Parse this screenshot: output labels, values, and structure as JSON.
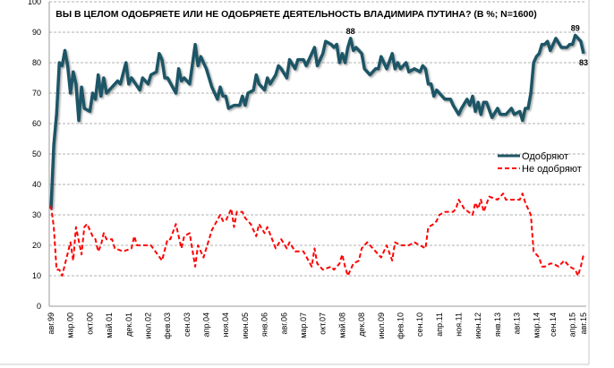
{
  "chart_data": {
    "type": "line",
    "title": "ВЫ В ЦЕЛОМ ОДОБРЯЕТЕ ИЛИ НЕ ОДОБРЯЕТЕ ДЕЯТЕЛЬНОСТЬ ВЛАДИМИРА ПУТИНА? (В %; N=1600)",
    "xlabel": "",
    "ylabel": "",
    "ylim": [
      0,
      100
    ],
    "yticks": [
      0,
      10,
      20,
      30,
      40,
      50,
      60,
      70,
      80,
      90,
      100
    ],
    "xlim": [
      "1999-08",
      "2015-08"
    ],
    "xtick_labels": [
      "авг.99",
      "мар.00",
      "окт.00",
      "май.01",
      "дек.01",
      "июл.02",
      "фев.03",
      "сен.03",
      "апр.04",
      "ноя.04",
      "июн.05",
      "янв.06",
      "авг.06",
      "мар.07",
      "окт.07",
      "май.08",
      "дек.08",
      "июл.09",
      "фев.10",
      "сен.10",
      "апр.11",
      "ноя.11",
      "июн.12",
      "янв.13",
      "авг.13",
      "мар.14",
      "сен.14",
      "апр.15",
      "авг.15"
    ],
    "grid": "horizontal dashed",
    "legend_position": "right",
    "series": [
      {
        "name": "Одобряют",
        "color": "#1f5566",
        "style": "solid",
        "points": [
          [
            "1999-08",
            32
          ],
          [
            "1999-09",
            53
          ],
          [
            "1999-10",
            63
          ],
          [
            "1999-11",
            80
          ],
          [
            "1999-12",
            79
          ],
          [
            "2000-01",
            84
          ],
          [
            "2000-02",
            79
          ],
          [
            "2000-03",
            70
          ],
          [
            "2000-04",
            77
          ],
          [
            "2000-05",
            73
          ],
          [
            "2000-06",
            61
          ],
          [
            "2000-07",
            72
          ],
          [
            "2000-08",
            65
          ],
          [
            "2000-10",
            64
          ],
          [
            "2000-11",
            70
          ],
          [
            "2000-12",
            68
          ],
          [
            "2001-01",
            76
          ],
          [
            "2001-02",
            69
          ],
          [
            "2001-03",
            75
          ],
          [
            "2001-04",
            70
          ],
          [
            "2001-06",
            72
          ],
          [
            "2001-08",
            74
          ],
          [
            "2001-09",
            73
          ],
          [
            "2001-11",
            80
          ],
          [
            "2001-12",
            73
          ],
          [
            "2002-01",
            75
          ],
          [
            "2002-04",
            71
          ],
          [
            "2002-05",
            75
          ],
          [
            "2002-07",
            73
          ],
          [
            "2002-08",
            76
          ],
          [
            "2002-10",
            77
          ],
          [
            "2002-11",
            83
          ],
          [
            "2002-12",
            81
          ],
          [
            "2003-01",
            75
          ],
          [
            "2003-02",
            75
          ],
          [
            "2003-05",
            70
          ],
          [
            "2003-06",
            78
          ],
          [
            "2003-07",
            74
          ],
          [
            "2003-08",
            75
          ],
          [
            "2003-10",
            73
          ],
          [
            "2003-12",
            86
          ],
          [
            "2004-01",
            79
          ],
          [
            "2004-02",
            82
          ],
          [
            "2004-04",
            78
          ],
          [
            "2004-06",
            72
          ],
          [
            "2004-08",
            68
          ],
          [
            "2004-09",
            72
          ],
          [
            "2004-10",
            69
          ],
          [
            "2004-11",
            69
          ],
          [
            "2004-12",
            65
          ],
          [
            "2005-02",
            66
          ],
          [
            "2005-04",
            66
          ],
          [
            "2005-05",
            69
          ],
          [
            "2005-06",
            66
          ],
          [
            "2005-07",
            70
          ],
          [
            "2005-09",
            71
          ],
          [
            "2005-10",
            76
          ],
          [
            "2005-11",
            73
          ],
          [
            "2006-01",
            71
          ],
          [
            "2006-02",
            75
          ],
          [
            "2006-03",
            73
          ],
          [
            "2006-05",
            76
          ],
          [
            "2006-06",
            79
          ],
          [
            "2006-07",
            78
          ],
          [
            "2006-09",
            75
          ],
          [
            "2006-10",
            81
          ],
          [
            "2006-12",
            78
          ],
          [
            "2007-01",
            81
          ],
          [
            "2007-03",
            81
          ],
          [
            "2007-04",
            79
          ],
          [
            "2007-05",
            81
          ],
          [
            "2007-07",
            85
          ],
          [
            "2007-08",
            79
          ],
          [
            "2007-10",
            83
          ],
          [
            "2007-11",
            87
          ],
          [
            "2008-01",
            86
          ],
          [
            "2008-02",
            85
          ],
          [
            "2008-03",
            86
          ],
          [
            "2008-04",
            80
          ],
          [
            "2008-05",
            83
          ],
          [
            "2008-06",
            80
          ],
          [
            "2008-07",
            85
          ],
          [
            "2008-08",
            88
          ],
          [
            "2008-09",
            84
          ],
          [
            "2008-10",
            85
          ],
          [
            "2008-12",
            83
          ],
          [
            "2009-01",
            78
          ],
          [
            "2009-03",
            76
          ],
          [
            "2009-05",
            78
          ],
          [
            "2009-06",
            78
          ],
          [
            "2009-07",
            82
          ],
          [
            "2009-08",
            80
          ],
          [
            "2009-09",
            78
          ],
          [
            "2009-11",
            83
          ],
          [
            "2009-12",
            78
          ],
          [
            "2010-01",
            80
          ],
          [
            "2010-02",
            78
          ],
          [
            "2010-04",
            80
          ],
          [
            "2010-05",
            77
          ],
          [
            "2010-07",
            78
          ],
          [
            "2010-09",
            77
          ],
          [
            "2010-10",
            79
          ],
          [
            "2010-11",
            78
          ],
          [
            "2010-12",
            73
          ],
          [
            "2011-01",
            73
          ],
          [
            "2011-02",
            69
          ],
          [
            "2011-03",
            71
          ],
          [
            "2011-05",
            69
          ],
          [
            "2011-06",
            68
          ],
          [
            "2011-08",
            68
          ],
          [
            "2011-09",
            66
          ],
          [
            "2011-11",
            63
          ],
          [
            "2011-12",
            65
          ],
          [
            "2012-02",
            68
          ],
          [
            "2012-03",
            66
          ],
          [
            "2012-04",
            69
          ],
          [
            "2012-05",
            64
          ],
          [
            "2012-06",
            67
          ],
          [
            "2012-07",
            63
          ],
          [
            "2012-08",
            67
          ],
          [
            "2012-09",
            67
          ],
          [
            "2012-11",
            62
          ],
          [
            "2013-01",
            65
          ],
          [
            "2013-02",
            63
          ],
          [
            "2013-03",
            63
          ],
          [
            "2013-04",
            63
          ],
          [
            "2013-06",
            65
          ],
          [
            "2013-07",
            63
          ],
          [
            "2013-09",
            64
          ],
          [
            "2013-10",
            61
          ],
          [
            "2013-11",
            65
          ],
          [
            "2013-12",
            65
          ],
          [
            "2014-01",
            70
          ],
          [
            "2014-02",
            80
          ],
          [
            "2014-03",
            82
          ],
          [
            "2014-04",
            83
          ],
          [
            "2014-05",
            86
          ],
          [
            "2014-06",
            86
          ],
          [
            "2014-07",
            87
          ],
          [
            "2014-08",
            84
          ],
          [
            "2014-09",
            86
          ],
          [
            "2014-10",
            88
          ],
          [
            "2014-12",
            85
          ],
          [
            "2015-02",
            85
          ],
          [
            "2015-03",
            86
          ],
          [
            "2015-04",
            86
          ],
          [
            "2015-05",
            89
          ],
          [
            "2015-07",
            87
          ],
          [
            "2015-08",
            83
          ]
        ]
      },
      {
        "name": "Не одобряют",
        "color": "#ff0000",
        "style": "dashed",
        "points": [
          [
            "1999-08",
            33
          ],
          [
            "1999-09",
            26
          ],
          [
            "1999-10",
            12
          ],
          [
            "1999-11",
            12
          ],
          [
            "1999-12",
            10
          ],
          [
            "2000-03",
            21
          ],
          [
            "2000-04",
            15
          ],
          [
            "2000-05",
            26
          ],
          [
            "2000-07",
            17
          ],
          [
            "2000-08",
            26
          ],
          [
            "2000-09",
            27
          ],
          [
            "2000-11",
            23
          ],
          [
            "2000-12",
            22
          ],
          [
            "2001-01",
            18
          ],
          [
            "2001-02",
            20
          ],
          [
            "2001-03",
            24
          ],
          [
            "2001-04",
            22
          ],
          [
            "2001-06",
            22
          ],
          [
            "2001-07",
            19
          ],
          [
            "2001-10",
            18
          ],
          [
            "2002-01",
            19
          ],
          [
            "2002-02",
            23
          ],
          [
            "2002-03",
            20
          ],
          [
            "2002-08",
            20
          ],
          [
            "2002-12",
            15
          ],
          [
            "2003-02",
            22
          ],
          [
            "2003-03",
            22
          ],
          [
            "2003-05",
            27
          ],
          [
            "2003-07",
            19
          ],
          [
            "2003-08",
            23
          ],
          [
            "2003-10",
            24
          ],
          [
            "2003-12",
            13
          ],
          [
            "2004-01",
            20
          ],
          [
            "2004-03",
            16
          ],
          [
            "2004-04",
            19
          ],
          [
            "2004-06",
            25
          ],
          [
            "2004-09",
            30
          ],
          [
            "2004-10",
            28
          ],
          [
            "2004-11",
            28
          ],
          [
            "2005-01",
            32
          ],
          [
            "2005-02",
            26
          ],
          [
            "2005-03",
            31
          ],
          [
            "2005-05",
            31
          ],
          [
            "2005-06",
            29
          ],
          [
            "2005-08",
            27
          ],
          [
            "2005-10",
            23
          ],
          [
            "2005-11",
            27
          ],
          [
            "2006-01",
            24
          ],
          [
            "2006-02",
            26
          ],
          [
            "2006-05",
            19
          ],
          [
            "2006-07",
            22
          ],
          [
            "2006-09",
            19
          ],
          [
            "2006-10",
            21
          ],
          [
            "2006-12",
            18
          ],
          [
            "2007-03",
            18
          ],
          [
            "2007-06",
            13
          ],
          [
            "2007-07",
            19
          ],
          [
            "2007-08",
            14
          ],
          [
            "2007-10",
            12
          ],
          [
            "2008-01",
            13
          ],
          [
            "2008-02",
            12
          ],
          [
            "2008-04",
            14
          ],
          [
            "2008-05",
            17
          ],
          [
            "2008-06",
            13
          ],
          [
            "2008-07",
            10
          ],
          [
            "2008-09",
            14
          ],
          [
            "2008-11",
            15
          ],
          [
            "2008-12",
            19
          ],
          [
            "2009-02",
            21
          ],
          [
            "2009-04",
            19
          ],
          [
            "2009-07",
            16
          ],
          [
            "2009-09",
            20
          ],
          [
            "2009-11",
            15
          ],
          [
            "2009-12",
            21
          ],
          [
            "2010-02",
            20
          ],
          [
            "2010-03",
            20
          ],
          [
            "2010-05",
            20
          ],
          [
            "2010-07",
            21
          ],
          [
            "2010-09",
            20
          ],
          [
            "2010-11",
            19
          ],
          [
            "2010-12",
            26
          ],
          [
            "2011-02",
            27
          ],
          [
            "2011-03",
            28
          ],
          [
            "2011-04",
            30
          ],
          [
            "2011-06",
            31
          ],
          [
            "2011-09",
            31
          ],
          [
            "2011-10",
            32
          ],
          [
            "2011-11",
            35
          ],
          [
            "2012-01",
            32
          ],
          [
            "2012-04",
            30
          ],
          [
            "2012-05",
            34
          ],
          [
            "2012-06",
            32
          ],
          [
            "2012-07",
            35
          ],
          [
            "2012-08",
            31
          ],
          [
            "2012-10",
            36
          ],
          [
            "2013-01",
            35
          ],
          [
            "2013-03",
            37
          ],
          [
            "2013-04",
            35
          ],
          [
            "2013-07",
            35
          ],
          [
            "2013-09",
            35
          ],
          [
            "2013-10",
            37
          ],
          [
            "2013-11",
            34
          ],
          [
            "2014-01",
            30
          ],
          [
            "2014-02",
            18
          ],
          [
            "2014-04",
            16
          ],
          [
            "2014-05",
            13
          ],
          [
            "2014-06",
            13
          ],
          [
            "2014-08",
            14
          ],
          [
            "2014-09",
            14
          ],
          [
            "2014-11",
            13
          ],
          [
            "2015-01",
            15
          ],
          [
            "2015-03",
            13
          ],
          [
            "2015-05",
            12
          ],
          [
            "2015-06",
            10
          ],
          [
            "2015-07",
            13
          ],
          [
            "2015-08",
            17
          ]
        ]
      }
    ],
    "data_labels": [
      {
        "series": "Одобряют",
        "x": "2008-08",
        "text": "88"
      },
      {
        "series": "Одобряют",
        "x": "2015-05",
        "text": "89"
      },
      {
        "series": "Одобряют",
        "x": "2015-08",
        "text": "83"
      }
    ]
  }
}
